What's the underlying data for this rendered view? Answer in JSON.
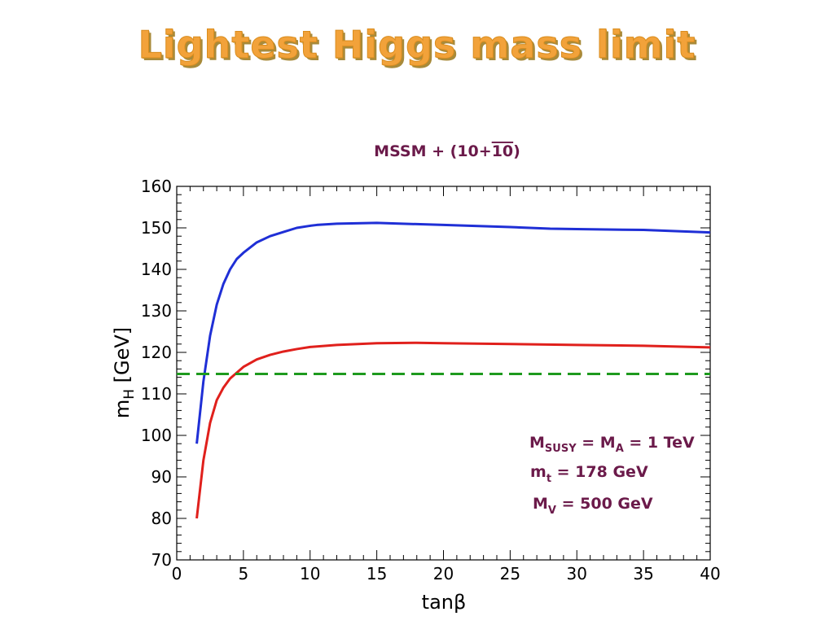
{
  "slide": {
    "title": "Lightest Higgs mass limit"
  },
  "chart_data": {
    "type": "line",
    "title": "MSSM + (10+10)",
    "title_parts": {
      "prefix": "MSSM + (10+",
      "overlined": "10",
      "suffix": ")"
    },
    "xlabel": "tanβ",
    "ylabel": {
      "main": "m",
      "sub": "H",
      "rest": " [GeV]"
    },
    "xlim": [
      0,
      40
    ],
    "ylim": [
      70,
      160
    ],
    "xticks": [
      0,
      5,
      10,
      15,
      20,
      25,
      30,
      35,
      40
    ],
    "yticks": [
      70,
      80,
      90,
      100,
      110,
      120,
      130,
      140,
      150,
      160
    ],
    "grid": false,
    "series": [
      {
        "color": "#1f2fd6",
        "style": "solid",
        "x": [
          1.5,
          2,
          2.5,
          3,
          3.5,
          4,
          4.5,
          5,
          6,
          7,
          8,
          9,
          10,
          10.5,
          12,
          15,
          20,
          25,
          28,
          30,
          35,
          40
        ],
        "y": [
          98,
          113,
          124,
          131.5,
          136.5,
          140,
          142.5,
          144,
          146.5,
          148,
          149,
          150,
          150.5,
          150.7,
          151,
          151.2,
          150.7,
          150.2,
          149.8,
          149.7,
          149.5,
          148.9
        ]
      },
      {
        "color": "#e0201c",
        "style": "solid",
        "x": [
          1.5,
          2,
          2.5,
          3,
          3.5,
          4,
          5,
          6,
          7,
          8,
          9,
          10,
          12,
          15,
          18,
          20,
          25,
          30,
          35,
          40
        ],
        "y": [
          80,
          94,
          103,
          108.5,
          111.5,
          113.7,
          116.5,
          118.3,
          119.4,
          120.2,
          120.8,
          121.3,
          121.8,
          122.2,
          122.3,
          122.2,
          122,
          121.8,
          121.6,
          121.2
        ]
      },
      {
        "color": "#1e9a1e",
        "style": "dashed",
        "x": [
          0,
          40
        ],
        "y": [
          114.8,
          114.8
        ]
      }
    ],
    "annotations": [
      {
        "main": "M",
        "sub": "SUSY",
        "rest": " = M",
        "sub2": "A",
        "rest2": " = 1 TeV"
      },
      {
        "main": "m",
        "sub": "t",
        "rest": " = 178 GeV",
        "sub2": "",
        "rest2": ""
      },
      {
        "main": "M",
        "sub": "V",
        "rest": " = 500 GeV",
        "sub2": "",
        "rest2": ""
      }
    ]
  }
}
